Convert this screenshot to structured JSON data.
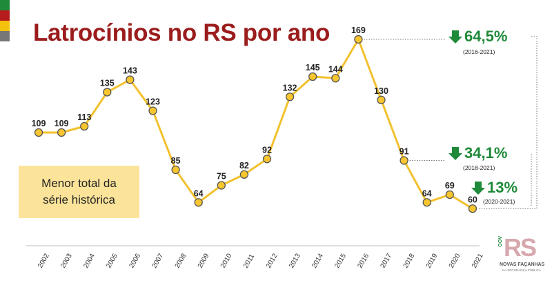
{
  "colors": {
    "line": "#f2c12e",
    "marker_fill": "#f7c62f",
    "marker_stroke": "#555555",
    "title": "#9b1c1c",
    "decrease": "#1f8a3a",
    "note_bg": "#fbe49a",
    "flag": [
      "#1f8a3a",
      "#b71c1c",
      "#f4c20d",
      "#777777"
    ]
  },
  "title": "Latrocínios no RS por ano",
  "note": {
    "line1": "Menor total da",
    "line2": "série histórica"
  },
  "changes": [
    {
      "percent": "64,5%",
      "range": "(2016-2021)",
      "icon": "down-arrow-icon"
    },
    {
      "percent": "34,1%",
      "range": "(2018-2021)",
      "icon": "down-arrow-icon"
    },
    {
      "percent": "13%",
      "range": "(2020-2021)",
      "icon": "down-arrow-icon"
    }
  ],
  "logo": {
    "mark": "RS",
    "gov": "GOV",
    "tagline": "NOVAS FAÇANHAS",
    "sub": "NA SEGURANÇA PÚBLICA"
  },
  "chart_data": {
    "type": "line",
    "title": "Latrocínios no RS por ano",
    "xlabel": "",
    "ylabel": "",
    "x": [
      "2002",
      "2003",
      "2004",
      "2005",
      "2006",
      "2007",
      "2008",
      "2009",
      "2010",
      "2011",
      "2012",
      "2013",
      "2014",
      "2015",
      "2016",
      "2017",
      "2018",
      "2019",
      "2020",
      "2021"
    ],
    "values": [
      109,
      109,
      113,
      135,
      143,
      123,
      85,
      64,
      75,
      82,
      92,
      132,
      145,
      144,
      169,
      130,
      91,
      64,
      69,
      60
    ],
    "labels": [
      "109",
      "109",
      "113",
      "135",
      "143",
      "123",
      "85",
      "64",
      "75",
      "82",
      "92",
      "132",
      "145",
      "144",
      "169",
      "130",
      "91",
      "64",
      "69",
      "60"
    ],
    "grid": false,
    "legend": "none"
  }
}
